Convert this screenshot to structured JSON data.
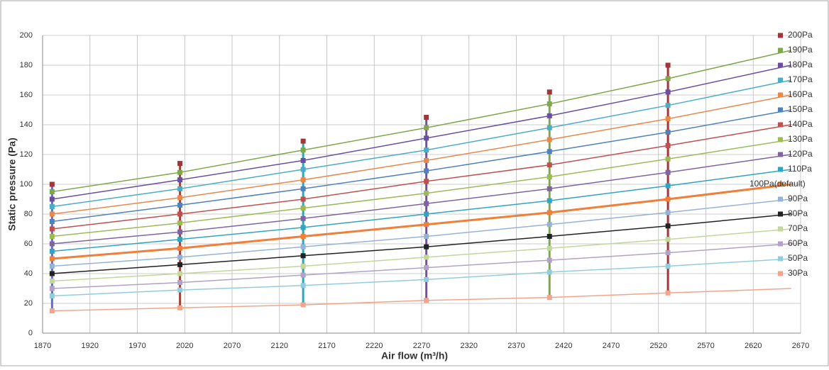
{
  "chart_data": {
    "type": "line",
    "x_label": "Air flow (m³/h)",
    "y_label": "Static pressure (Pa)",
    "x": [
      1880,
      2015,
      2145,
      2275,
      2405,
      2530,
      2660
    ],
    "xlim": [
      1870,
      2670
    ],
    "xticks": [
      1870,
      1920,
      1970,
      2020,
      2070,
      2120,
      2170,
      2220,
      2270,
      2320,
      2370,
      2420,
      2470,
      2520,
      2570,
      2620,
      2670
    ],
    "ylim": [
      0,
      200
    ],
    "yticks": [
      0,
      20,
      40,
      60,
      80,
      100,
      120,
      140,
      160,
      180,
      200
    ],
    "grid": true,
    "legend": "right",
    "drop_line_colors": [
      "#6a6fb0",
      "#a0453a",
      "#31a4b0",
      "#7a4fa0",
      "#7fa84a",
      "#a0353a"
    ],
    "series": [
      {
        "name": "200Pa",
        "color": "#a0353a",
        "values": [
          100,
          114,
          129,
          145,
          162,
          180,
          null
        ]
      },
      {
        "name": "190Pa",
        "color": "#7fa84a",
        "values": [
          95,
          108,
          123,
          138,
          154,
          171,
          190
        ]
      },
      {
        "name": "180Pa",
        "color": "#6a4fa0",
        "values": [
          90,
          103,
          116,
          131,
          146,
          162,
          180
        ]
      },
      {
        "name": "170Pa",
        "color": "#4bacc6",
        "values": [
          85,
          97,
          110,
          123,
          138,
          153,
          170
        ]
      },
      {
        "name": "160Pa",
        "color": "#e8884a",
        "values": [
          80,
          91,
          103,
          116,
          130,
          144,
          160
        ]
      },
      {
        "name": "150Pa",
        "color": "#4f81bd",
        "values": [
          75,
          86,
          97,
          109,
          122,
          135,
          150
        ]
      },
      {
        "name": "140Pa",
        "color": "#c0504d",
        "values": [
          70,
          80,
          90,
          102,
          113,
          126,
          140
        ]
      },
      {
        "name": "130Pa",
        "color": "#9bbb59",
        "values": [
          65,
          74,
          84,
          94,
          105,
          117,
          130
        ]
      },
      {
        "name": "120Pa",
        "color": "#8064a2",
        "values": [
          60,
          68,
          77,
          87,
          97,
          108,
          120
        ]
      },
      {
        "name": "110Pa",
        "color": "#31a4c0",
        "values": [
          55,
          63,
          71,
          80,
          89,
          99,
          110
        ]
      },
      {
        "name": "100Pa(default)",
        "color": "#f07f3a",
        "values": [
          50,
          57,
          65,
          73,
          81,
          90,
          100
        ]
      },
      {
        "name": "90Pa",
        "color": "#95b3d7",
        "values": [
          45,
          51,
          58,
          65,
          73,
          81,
          90
        ]
      },
      {
        "name": "80Pa",
        "color": "#222222",
        "values": [
          40,
          46,
          52,
          58,
          65,
          72,
          80
        ]
      },
      {
        "name": "70Pa",
        "color": "#c3d69b",
        "values": [
          35,
          40,
          45,
          51,
          57,
          63,
          70
        ]
      },
      {
        "name": "60Pa",
        "color": "#b3a2c7",
        "values": [
          30,
          34,
          39,
          44,
          49,
          54,
          60
        ]
      },
      {
        "name": "50Pa",
        "color": "#93cddd",
        "values": [
          25,
          29,
          32,
          36,
          41,
          45,
          50
        ]
      },
      {
        "name": "30Pa",
        "color": "#f2a58a",
        "values": [
          15,
          17,
          19,
          22,
          24,
          27,
          30
        ]
      }
    ]
  }
}
